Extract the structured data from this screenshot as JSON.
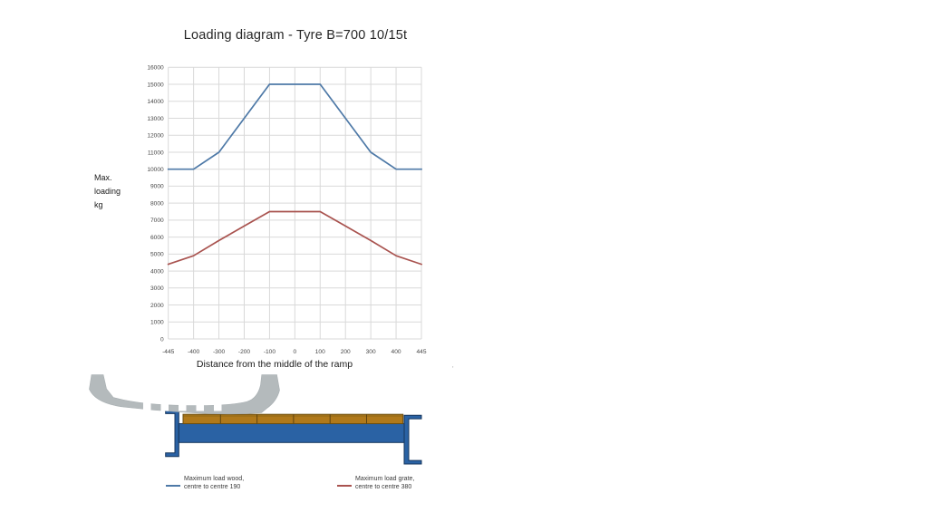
{
  "page": {
    "background": "#ffffff"
  },
  "chart_data": {
    "type": "line",
    "title": "Loading diagram - Tyre B=700 10/15t",
    "categories": [
      "-445",
      "-400",
      "-300",
      "-200",
      "-100",
      "0",
      "100",
      "200",
      "300",
      "400",
      "445"
    ],
    "series": [
      {
        "name": "Maximum load wood, centre to centre 190",
        "color": "#4e79a7",
        "values": [
          10000,
          10000,
          11000,
          13000,
          15000,
          15000,
          15000,
          13000,
          11000,
          10000,
          10000
        ]
      },
      {
        "name": "Maximum load grate, centre to centre 380",
        "color": "#a9534f",
        "values": [
          4400,
          4900,
          5800,
          6650,
          7500,
          7500,
          7500,
          6650,
          5800,
          4900,
          4400
        ]
      }
    ],
    "xlabel": "Distance from the middle of the ramp",
    "ylabel": "Max. loading kg",
    "ylim": [
      0,
      16000
    ],
    "ytick_step": 1000,
    "grid": true,
    "legend_position": "bottom"
  },
  "axes": {
    "y_label_multiline": "Max.\nloading\nkg",
    "x_title": "Distance from the middle of the ramp"
  },
  "legend": {
    "items": [
      {
        "line1": "Maximum load wood,",
        "line2": "centre to centre 190",
        "color": "#4e79a7"
      },
      {
        "line1": "Maximum load grate,",
        "line2": "centre to centre 380",
        "color": "#a9534f"
      }
    ]
  },
  "diagram": {
    "colors": {
      "tyre": "#b4babc",
      "steel": "#2a62a4",
      "wood": "#b0791a"
    }
  },
  "artifact_mark": "'"
}
